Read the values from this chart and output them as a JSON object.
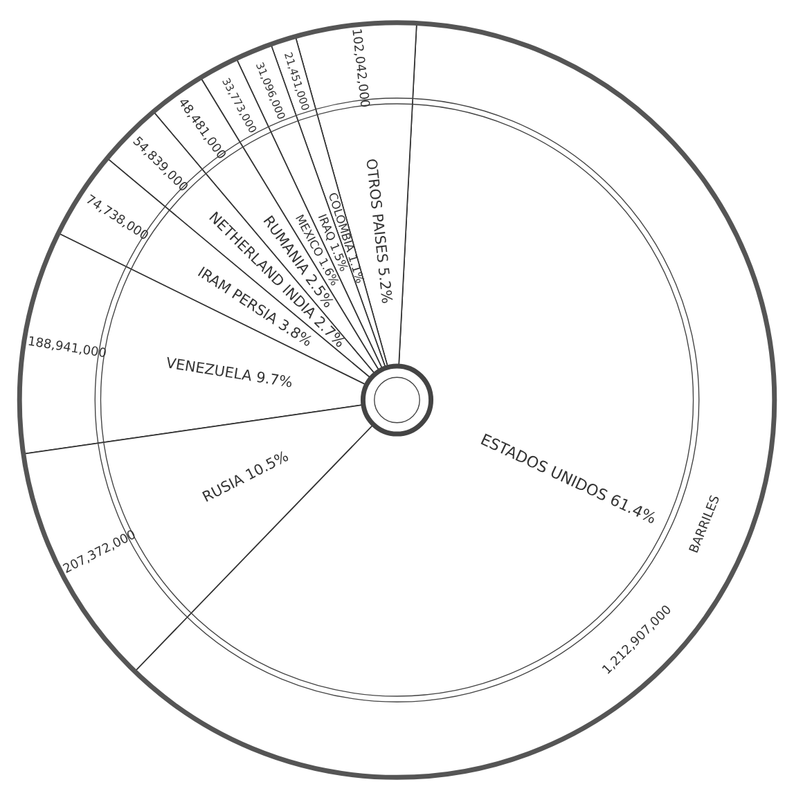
{
  "chart_data": {
    "type": "pie",
    "categories": [
      "ESTADOS UNIDOS 61.4%",
      "OTROS PAISES 5.2%",
      "COLOMBIA 1.1%",
      "IRAQ 1.5%",
      "MEXICO 1.6%",
      "RUMANIA 2.5%",
      "NETHERLAND INDIA 2.7%",
      "IRAM PERSIA 3.8%",
      "VENEZUELA 9.7%",
      "RUSIA 10.5%"
    ],
    "values": [
      1212907000,
      102042000,
      21451000,
      31096000,
      33773000,
      48481000,
      54839000,
      74738000,
      188941000,
      207372000
    ],
    "value_labels": [
      "1,212,907,000",
      "102,042,000",
      "21,451,000",
      "31,096,000",
      "33,773,000",
      "48,481,000",
      "54,839,000",
      "74,738,000",
      "188,941,000",
      "207,372,000"
    ],
    "colors": [
      "#ffffff",
      "#ffffff",
      "#ffffff",
      "#ffffff",
      "#ffffff",
      "#ffffff",
      "#ffffff",
      "#ffffff",
      "#ffffff",
      "#ffffff"
    ],
    "annotations": [
      "BARRILES"
    ]
  }
}
